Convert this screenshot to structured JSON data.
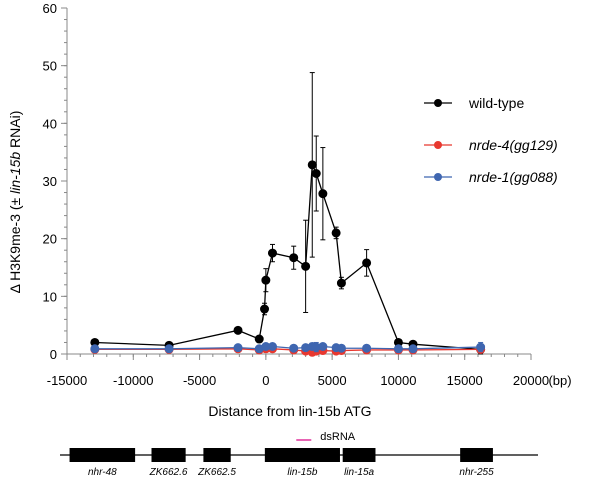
{
  "colors": {
    "axis": "#888888",
    "wild_type": "#000000",
    "nrde4": "#e8382f",
    "nrde1": "#3f66b0",
    "dsrna": "#e0309a",
    "gene_box": "#000000"
  },
  "chart_data": {
    "type": "scatter",
    "xlabel": "Distance from lin-15b ATG",
    "ylabel_prefix": "Δ H3K9me-3 (± ",
    "ylabel_italic": "lin-15b",
    "ylabel_suffix": " RNAi)",
    "x_unit_label": "(bp)",
    "xlim": [
      -15000,
      20000
    ],
    "ylim": [
      0,
      60
    ],
    "x_ticks": [
      -15000,
      -10000,
      -5000,
      0,
      5000,
      10000,
      15000,
      20000
    ],
    "y_ticks": [
      0,
      10,
      20,
      30,
      40,
      50,
      60
    ],
    "grid": false,
    "legend_position": "right",
    "series": [
      {
        "name": "wild-type",
        "color_key": "wild_type",
        "italic": false,
        "points": [
          {
            "x": -12900,
            "y": 2.0,
            "err": 0
          },
          {
            "x": -7300,
            "y": 1.5,
            "err": 0
          },
          {
            "x": -2100,
            "y": 4.1,
            "err": 0
          },
          {
            "x": -500,
            "y": 2.6,
            "err": 0
          },
          {
            "x": -100,
            "y": 7.8,
            "err": 1.0
          },
          {
            "x": 0,
            "y": 12.8,
            "err": 2.0
          },
          {
            "x": 500,
            "y": 17.5,
            "err": 1.5
          },
          {
            "x": 2100,
            "y": 16.7,
            "err": 2.0
          },
          {
            "x": 3000,
            "y": 15.2,
            "err": 8.0
          },
          {
            "x": 3500,
            "y": 32.8,
            "err": 16.0
          },
          {
            "x": 3800,
            "y": 31.3,
            "err": 6.5
          },
          {
            "x": 4300,
            "y": 27.8,
            "err": 8.0
          },
          {
            "x": 5300,
            "y": 21.0,
            "err": 1.0
          },
          {
            "x": 5700,
            "y": 12.3,
            "err": 1.0
          },
          {
            "x": 7600,
            "y": 15.8,
            "err": 2.3
          },
          {
            "x": 10000,
            "y": 2.0,
            "err": 0
          },
          {
            "x": 11100,
            "y": 1.7,
            "err": 0
          },
          {
            "x": 16200,
            "y": 0.8,
            "err": 0.8
          }
        ]
      },
      {
        "name": "nrde-4(gg129)",
        "color_key": "nrde4",
        "italic": true,
        "points": [
          {
            "x": -12900,
            "y": 0.8,
            "err": 0
          },
          {
            "x": -7300,
            "y": 0.8,
            "err": 0
          },
          {
            "x": -2100,
            "y": 0.9,
            "err": 0
          },
          {
            "x": -500,
            "y": 0.7,
            "err": 0
          },
          {
            "x": 0,
            "y": 0.9,
            "err": 0
          },
          {
            "x": 500,
            "y": 0.9,
            "err": 0
          },
          {
            "x": 2100,
            "y": 0.7,
            "err": 0
          },
          {
            "x": 3000,
            "y": 0.5,
            "err": 0
          },
          {
            "x": 3500,
            "y": 0.3,
            "err": 0
          },
          {
            "x": 3800,
            "y": 0.5,
            "err": 0
          },
          {
            "x": 4300,
            "y": 0.6,
            "err": 0
          },
          {
            "x": 5300,
            "y": 0.5,
            "err": 0
          },
          {
            "x": 5700,
            "y": 0.6,
            "err": 0
          },
          {
            "x": 7600,
            "y": 0.7,
            "err": 0
          },
          {
            "x": 10000,
            "y": 0.7,
            "err": 0
          },
          {
            "x": 11100,
            "y": 0.7,
            "err": 0
          },
          {
            "x": 16200,
            "y": 0.8,
            "err": 0
          }
        ]
      },
      {
        "name": "nrde-1(gg088)",
        "color_key": "nrde1",
        "italic": true,
        "points": [
          {
            "x": -12900,
            "y": 0.9,
            "err": 0
          },
          {
            "x": -7300,
            "y": 0.9,
            "err": 0
          },
          {
            "x": -2100,
            "y": 1.1,
            "err": 0
          },
          {
            "x": -500,
            "y": 0.9,
            "err": 0
          },
          {
            "x": 0,
            "y": 1.3,
            "err": 0.3
          },
          {
            "x": 500,
            "y": 1.3,
            "err": 0.2
          },
          {
            "x": 2100,
            "y": 1.0,
            "err": 0
          },
          {
            "x": 3000,
            "y": 1.1,
            "err": 0.3
          },
          {
            "x": 3500,
            "y": 1.3,
            "err": 0.6
          },
          {
            "x": 3800,
            "y": 1.2,
            "err": 0.8
          },
          {
            "x": 4300,
            "y": 1.3,
            "err": 0.5
          },
          {
            "x": 5300,
            "y": 1.1,
            "err": 0.4
          },
          {
            "x": 5700,
            "y": 1.0,
            "err": 0
          },
          {
            "x": 7600,
            "y": 1.0,
            "err": 0
          },
          {
            "x": 10000,
            "y": 0.9,
            "err": 0
          },
          {
            "x": 11100,
            "y": 0.9,
            "err": 0
          },
          {
            "x": 16200,
            "y": 1.2,
            "err": 0.8
          }
        ]
      }
    ]
  },
  "gene_map": {
    "x_range": [
      -15000,
      20000
    ],
    "genes": [
      {
        "name": "nhr-48",
        "start": -14300,
        "end": -9500
      },
      {
        "name": "ZK662.6",
        "start": -8300,
        "end": -5800
      },
      {
        "name": "ZK662.5",
        "start": -4500,
        "end": -2500
      },
      {
        "name": "lin-15b",
        "start": 0,
        "end": 5500
      },
      {
        "name": "lin-15a",
        "start": 5700,
        "end": 8100
      },
      {
        "name": "nhr-255",
        "start": 14300,
        "end": 16700
      }
    ],
    "dsrna": {
      "label": "dsRNA",
      "start": 2300,
      "end": 3400
    }
  }
}
